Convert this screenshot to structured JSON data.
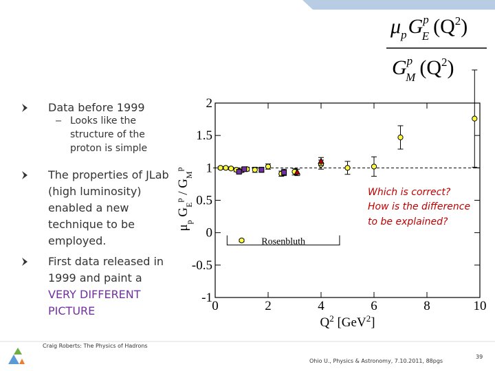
{
  "slide": {
    "formula_numerator": [
      "μ",
      "p",
      "G",
      "p",
      "E",
      "(Q",
      "2",
      ")"
    ],
    "formula_denominator": [
      "G",
      "p",
      "M",
      "(Q",
      "2",
      ")"
    ],
    "bullets": [
      {
        "lines": [
          "Data before 1999"
        ],
        "sub": [
          "Looks like the",
          "structure of the",
          "proton is simple"
        ]
      },
      {
        "lines": [
          "The properties of JLab",
          "(high luminosity)",
          "enabled a new",
          "technique to be",
          "employed."
        ]
      },
      {
        "lines": [
          "First data released in",
          "1999 and paint a"
        ],
        "highlight": [
          "VERY DIFFERENT",
          "PICTURE"
        ]
      }
    ],
    "question": [
      "Which is correct?",
      "How is the difference",
      "to be explained?"
    ],
    "footer_left": "Craig Roberts: The Physics of Hadrons",
    "footer_center": "Ohio U., Physics & Astronomy, 7.10.2011, 88pgs",
    "page_number": "39"
  },
  "chart_data": {
    "type": "scatter",
    "y_label": [
      "μ",
      "p",
      " G",
      "E",
      "p",
      " / G",
      "M",
      "p"
    ],
    "x_label": [
      "Q",
      "2",
      " [GeV",
      "2",
      "]"
    ],
    "annotation": "Rosenbluth",
    "reference_line": 1,
    "xlim": [
      0,
      10
    ],
    "xticks": [
      0,
      2,
      4,
      6,
      8,
      10
    ],
    "ylim": [
      -1,
      2
    ],
    "yticks": [
      -1,
      -0.5,
      0,
      0.5,
      1,
      1.5,
      2
    ],
    "series": [
      {
        "color": "#ffff40",
        "marker": "circle",
        "x": [
          0.2,
          0.4,
          0.6,
          0.8,
          1.0,
          1.2,
          1.5,
          2.0,
          2.5,
          3.0,
          4.0,
          5.0,
          6.0,
          7.0,
          9.8,
          1.0
        ],
        "values": [
          1.0,
          1.0,
          0.99,
          0.97,
          0.96,
          0.98,
          0.97,
          1.02,
          0.91,
          0.94,
          1.05,
          1.0,
          1.02,
          1.47,
          1.76,
          -0.12
        ],
        "errors": [
          0.02,
          0.02,
          0.02,
          0.03,
          0.03,
          0.03,
          0.04,
          0.04,
          0.04,
          0.05,
          0.07,
          0.1,
          0.15,
          0.18,
          0.75,
          0.02
        ]
      },
      {
        "color": "#7030a0",
        "marker": "square",
        "x": [
          0.9,
          1.1,
          1.75,
          2.6
        ],
        "values": [
          0.94,
          0.98,
          0.97,
          0.93
        ],
        "errors": [
          0.03,
          0.03,
          0.04,
          0.05
        ]
      },
      {
        "color": "#c00000",
        "marker": "triangle",
        "x": [
          3.1,
          4.0
        ],
        "values": [
          0.93,
          1.1
        ],
        "errors": [
          0.05,
          0.06
        ]
      }
    ]
  }
}
